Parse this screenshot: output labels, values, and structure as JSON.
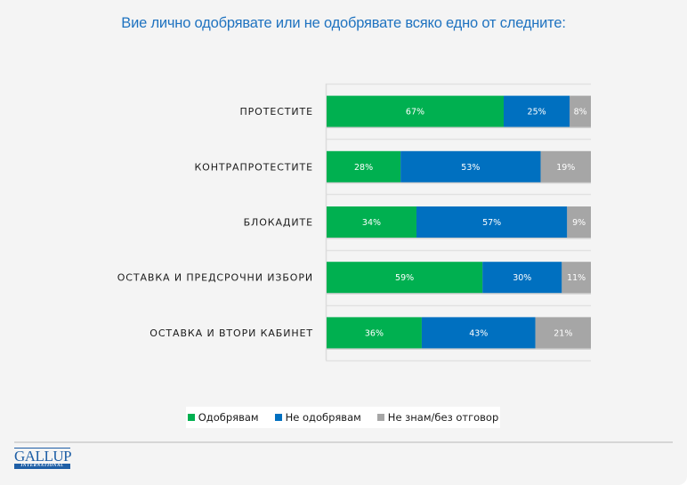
{
  "title": "Вие лично одобрявате или не одобрявате всяко едно от следните:",
  "chart_data": {
    "type": "bar",
    "orientation": "horizontal",
    "stacked": "percent",
    "title": "Вие лично одобрявате или не одобрявате всяко едно от следните:",
    "categories": [
      "ПРОТЕСТИТЕ",
      "КОНТРАПРОТЕСТИТЕ",
      "БЛОКАДИТЕ",
      "ОСТАВКА И ПРЕДСРОЧНИ ИЗБОРИ",
      "ОСТАВКА И ВТОРИ КАБИНЕТ"
    ],
    "series": [
      {
        "name": "Одобрявам",
        "color": "#00b050",
        "values": [
          67,
          28,
          34,
          59,
          36
        ],
        "labels": [
          "67%",
          "28%",
          "34%",
          "59%",
          "36%"
        ]
      },
      {
        "name": "Не одобрявам",
        "color": "#0070c0",
        "values": [
          25,
          53,
          57,
          30,
          43
        ],
        "labels": [
          "25%",
          "53%",
          "57%",
          "30%",
          "43%"
        ]
      },
      {
        "name": "Не знам/без отговор",
        "color": "#a6a6a6",
        "values": [
          8,
          19,
          9,
          11,
          21
        ],
        "labels": [
          "8%",
          "19%",
          "9%",
          "11%",
          "21%"
        ]
      }
    ],
    "xlim": [
      0,
      100
    ],
    "xlabel": "",
    "ylabel": "",
    "grid": true,
    "legend_position": "bottom",
    "unit": "%"
  },
  "legend": [
    {
      "label": "Одобрявам",
      "color": "#00b050"
    },
    {
      "label": "Не одобрявам",
      "color": "#0070c0"
    },
    {
      "label": "Не знам/без отговор",
      "color": "#a6a6a6"
    }
  ],
  "logo": {
    "top": "GALLUP",
    "bottom": "INTERNATIONAL"
  }
}
